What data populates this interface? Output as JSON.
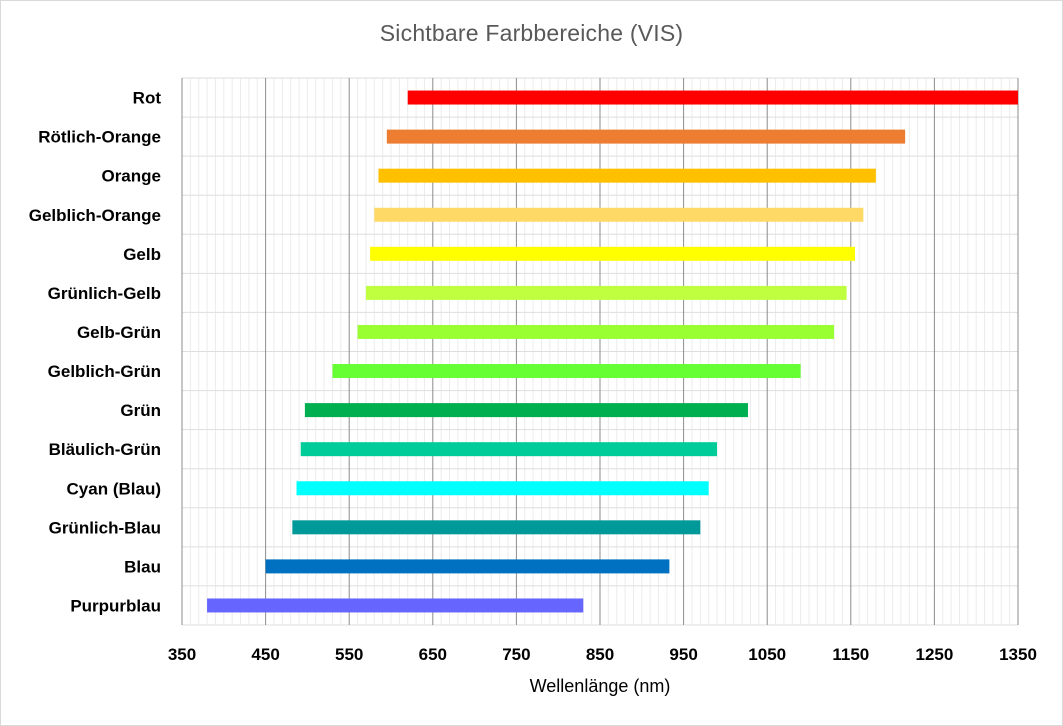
{
  "chart_data": {
    "type": "bar",
    "orientation": "horizontal",
    "title": "Sichtbare Farbbereiche (VIS)",
    "xlabel": "Wellenlänge (nm)",
    "ylabel": "",
    "xlim": [
      350,
      1350
    ],
    "x_ticks": [
      "350",
      "450",
      "550",
      "650",
      "750",
      "850",
      "950",
      "1050",
      "1150",
      "1250",
      "1350"
    ],
    "grid": "on",
    "legend": "none",
    "categories": [
      "Rot",
      "Rötlich-Orange",
      "Orange",
      "Gelblich-Orange",
      "Gelb",
      "Grünlich-Gelb",
      "Gelb-Grün",
      "Gelblich-Grün",
      "Grün",
      "Bläulich-Grün",
      "Cyan (Blau)",
      "Grünlich-Blau",
      "Blau",
      "Purpurblau"
    ],
    "ranges": [
      [
        620,
        1350
      ],
      [
        595,
        1215
      ],
      [
        585,
        1180
      ],
      [
        580,
        1165
      ],
      [
        575,
        1155
      ],
      [
        570,
        1145
      ],
      [
        560,
        1130
      ],
      [
        530,
        1090
      ],
      [
        497,
        1027
      ],
      [
        492,
        990
      ],
      [
        487,
        980
      ],
      [
        482,
        970
      ],
      [
        450,
        933
      ],
      [
        380,
        830
      ]
    ],
    "colors": [
      "#ff0000",
      "#ed7d31",
      "#ffc000",
      "#ffd966",
      "#ffff00",
      "#bfff3f",
      "#99ff33",
      "#66ff33",
      "#00b050",
      "#00cc99",
      "#00ffff",
      "#009999",
      "#0070c0",
      "#6666ff"
    ]
  }
}
